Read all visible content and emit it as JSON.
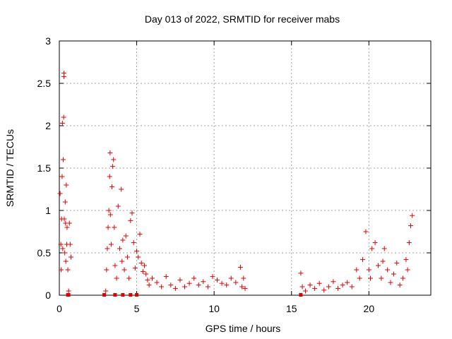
{
  "chart_data": {
    "type": "scatter",
    "title": "Day 013 of 2022, SRMTID for receiver mabs",
    "xlabel": "GPS time / hours",
    "ylabel": "SRMTID / TECUs",
    "xlim": [
      0,
      24
    ],
    "ylim": [
      0,
      3
    ],
    "xticks": [
      0,
      5,
      10,
      15,
      20
    ],
    "yticks": [
      0,
      0.5,
      1,
      1.5,
      2,
      2.5,
      3
    ],
    "xtick_labels": [
      "0",
      "5",
      "10",
      "15",
      "20"
    ],
    "ytick_labels": [
      "0",
      "0.5",
      "1",
      "1.5",
      "2",
      "2.5",
      "3"
    ],
    "grid": true,
    "marker": "+",
    "color": "#e00000",
    "series": [
      {
        "name": "SRMTID",
        "x": [
          0.05,
          0.1,
          0.12,
          0.15,
          0.18,
          0.2,
          0.22,
          0.25,
          0.28,
          0.3,
          0.3,
          0.32,
          0.35,
          0.38,
          0.4,
          0.42,
          0.45,
          0.48,
          0.5,
          0.55,
          0.6,
          0.65,
          0.7,
          0.75,
          3.0,
          3.05,
          3.1,
          3.15,
          3.2,
          3.25,
          3.28,
          3.3,
          3.35,
          3.4,
          3.45,
          3.5,
          3.55,
          3.6,
          3.7,
          3.8,
          3.9,
          4.0,
          4.05,
          4.1,
          4.2,
          4.3,
          4.4,
          4.5,
          4.6,
          4.7,
          4.8,
          4.9,
          5.0,
          5.1,
          5.2,
          5.3,
          5.4,
          5.5,
          5.6,
          5.7,
          5.8,
          6.0,
          6.3,
          6.6,
          6.9,
          7.2,
          7.5,
          7.8,
          8.1,
          8.4,
          8.7,
          9.0,
          9.3,
          9.6,
          9.9,
          10.2,
          10.5,
          10.8,
          11.1,
          11.4,
          11.7,
          11.8,
          11.9,
          12.0,
          15.6,
          15.7,
          15.9,
          16.2,
          16.5,
          16.8,
          17.1,
          17.4,
          17.7,
          18.0,
          18.3,
          18.6,
          18.9,
          19.2,
          19.4,
          19.6,
          19.8,
          20.0,
          20.1,
          20.2,
          20.4,
          20.6,
          20.8,
          20.9,
          21.0,
          21.2,
          21.4,
          21.6,
          21.8,
          22.0,
          22.2,
          22.4,
          22.5,
          22.6,
          22.7,
          22.8
        ],
        "y": [
          1.2,
          0.6,
          0.3,
          0.9,
          1.4,
          2.03,
          0.55,
          1.6,
          2.1,
          2.58,
          2.62,
          0.9,
          0.5,
          1.1,
          0.85,
          0.4,
          1.3,
          0.6,
          0.8,
          0.3,
          0.05,
          0.85,
          0.6,
          0.45,
          0.05,
          0.3,
          0.55,
          0.8,
          1.0,
          1.4,
          1.68,
          0.95,
          0.6,
          1.28,
          1.52,
          1.6,
          0.8,
          0.35,
          0.2,
          1.05,
          0.55,
          1.25,
          0.4,
          0.65,
          0.3,
          0.7,
          0.45,
          0.2,
          0.88,
          0.97,
          0.62,
          0.32,
          0.52,
          0.45,
          0.72,
          0.38,
          0.28,
          0.35,
          0.25,
          0.18,
          0.12,
          0.2,
          0.15,
          0.1,
          0.22,
          0.12,
          0.08,
          0.18,
          0.1,
          0.14,
          0.2,
          0.12,
          0.16,
          0.1,
          0.22,
          0.18,
          0.14,
          0.12,
          0.2,
          0.15,
          0.33,
          0.1,
          0.2,
          0.08,
          0.26,
          0.1,
          0.05,
          0.12,
          0.08,
          0.14,
          0.06,
          0.1,
          0.16,
          0.08,
          0.12,
          0.15,
          0.1,
          0.3,
          0.2,
          0.42,
          0.75,
          0.3,
          0.2,
          0.55,
          0.62,
          0.35,
          0.2,
          0.4,
          0.55,
          0.3,
          0.15,
          0.25,
          0.38,
          0.12,
          0.2,
          0.42,
          0.3,
          0.62,
          0.82,
          0.94
        ],
        "points_on_axis": [
          0.55,
          0.6,
          2.9,
          3.6,
          4.1,
          4.6,
          5.0,
          15.6
        ]
      }
    ]
  }
}
